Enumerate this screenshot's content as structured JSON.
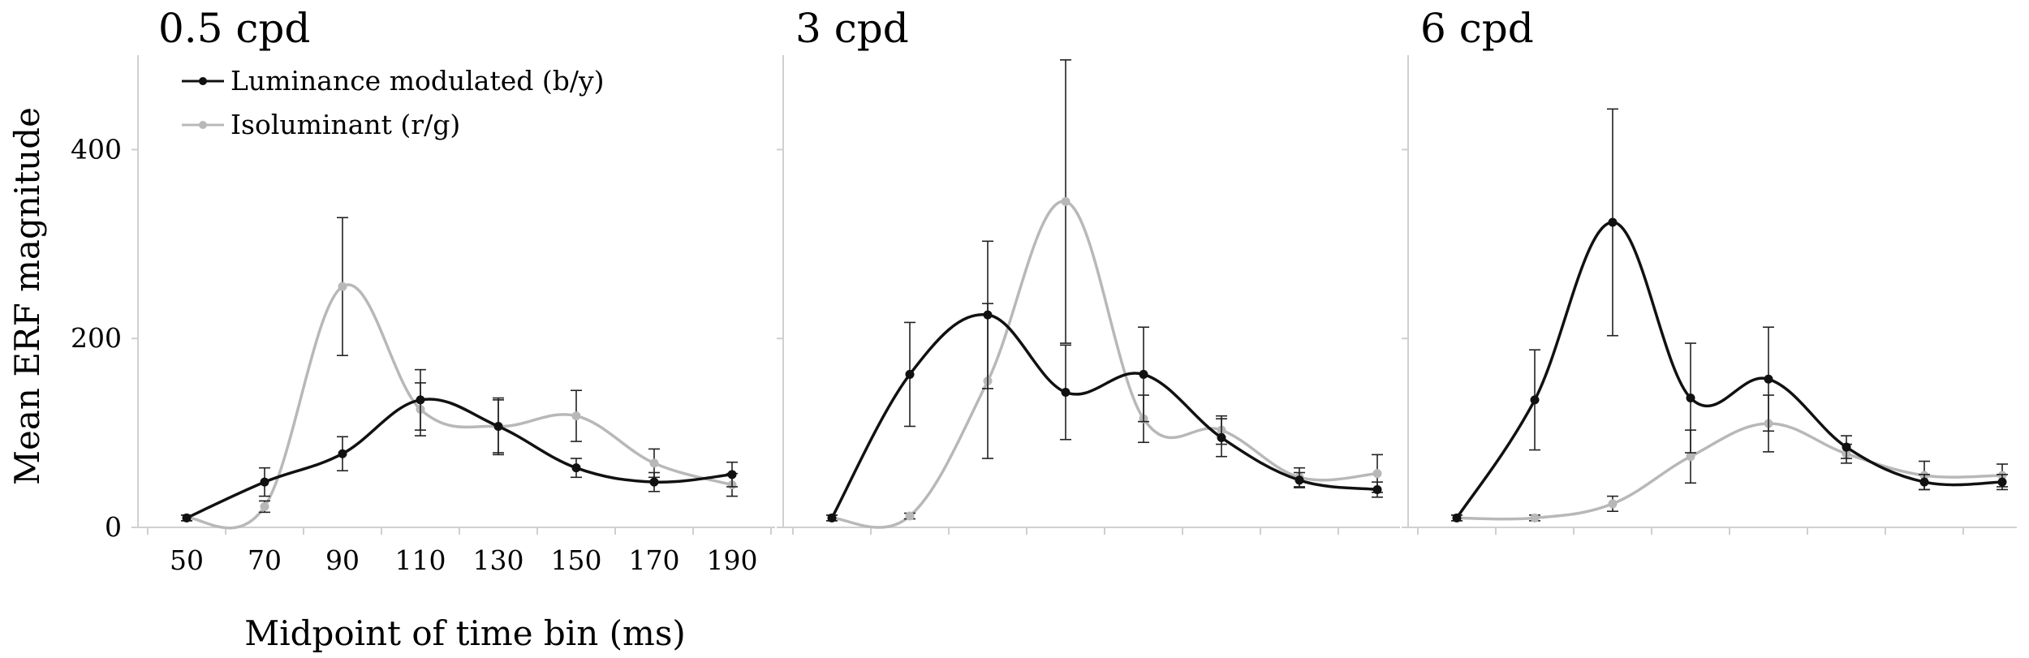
{
  "chart_data": {
    "type": "line",
    "ylabel": "Mean ERF magnitude",
    "xlabel": "Midpoint of time bin (ms)",
    "x": [
      50,
      70,
      90,
      110,
      130,
      150,
      170,
      190
    ],
    "x_tick_labels": [
      "50",
      "70",
      "90",
      "110",
      "130",
      "150",
      "170",
      "190"
    ],
    "ylim": [
      0,
      500
    ],
    "y_ticks": [
      0,
      200,
      400
    ],
    "legend": {
      "position": "top-left",
      "entries": [
        "Luminance modulated (b/y)",
        "Isoluminant (r/g)"
      ]
    },
    "colors": {
      "luminance": "#111111",
      "isoluminant": "#b8b8b8"
    },
    "panels": [
      {
        "title": "0.5 cpd",
        "series": [
          {
            "name": "Luminance modulated (b/y)",
            "values": [
              10,
              48,
              78,
              135,
              107,
              63,
              48,
              56
            ],
            "err": [
              3,
              15,
              18,
              32,
              28,
              10,
              10,
              13
            ]
          },
          {
            "name": "Isoluminant (r/g)",
            "values": [
              10,
              22,
              255,
              125,
              107,
              118,
              68,
              45
            ],
            "err": [
              3,
              6,
              73,
              28,
              30,
              27,
              15,
              12
            ]
          }
        ]
      },
      {
        "title": "3 cpd",
        "series": [
          {
            "name": "Luminance modulated (b/y)",
            "values": [
              10,
              162,
              225,
              143,
              162,
              95,
              50,
              40
            ],
            "err": [
              3,
              55,
              78,
              50,
              50,
              20,
              8,
              8
            ]
          },
          {
            "name": "Isoluminant (r/g)",
            "values": [
              10,
              12,
              155,
              345,
              115,
              103,
              53,
              57
            ],
            "err": [
              3,
              3,
              82,
              150,
              25,
              15,
              10,
              20
            ]
          }
        ]
      },
      {
        "title": "6 cpd",
        "series": [
          {
            "name": "Luminance modulated (b/y)",
            "values": [
              10,
              135,
              323,
              137,
              157,
              85,
              48,
              48
            ],
            "err": [
              3,
              53,
              120,
              58,
              55,
              12,
              8,
              8
            ]
          },
          {
            "name": "Isoluminant (r/g)",
            "values": [
              10,
              10,
              25,
              75,
              110,
              78,
              55,
              55
            ],
            "err": [
              3,
              3,
              8,
              28,
              30,
              10,
              15,
              12
            ]
          }
        ]
      }
    ]
  }
}
